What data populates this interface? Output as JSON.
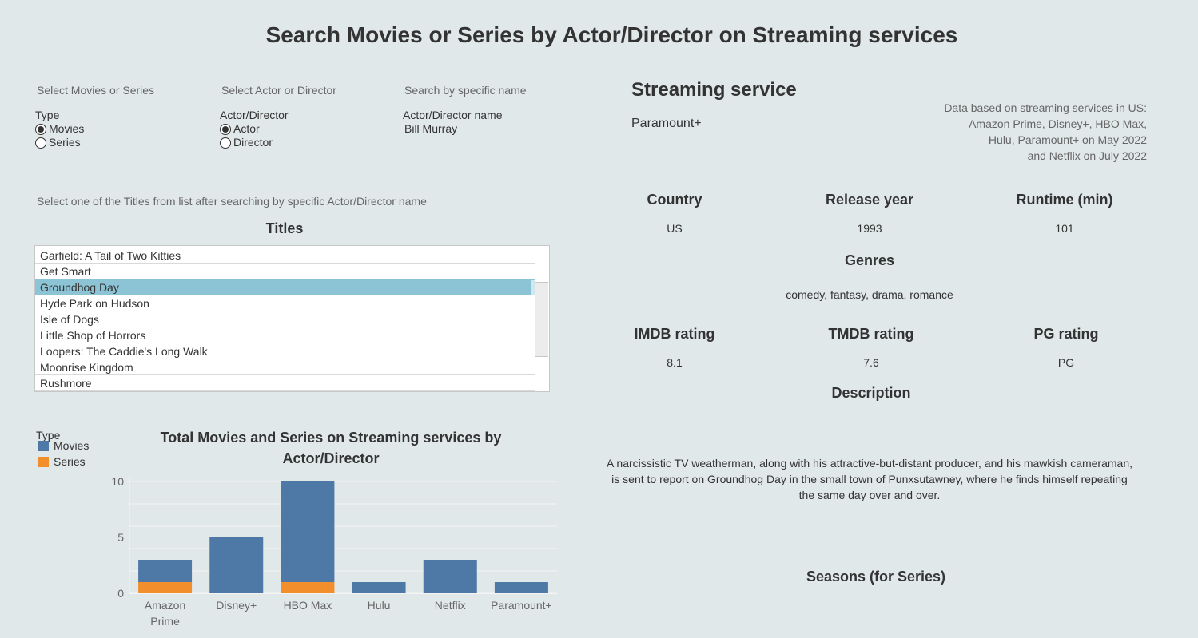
{
  "page": {
    "title": "Search Movies or Series by Actor/Director on Streaming services"
  },
  "filters": {
    "type_section_label": "Select Movies or Series",
    "type_header": "Type",
    "type_options": [
      "Movies",
      "Series"
    ],
    "type_selected": "Movies",
    "role_section_label": "Select Actor or Director",
    "role_header": "Actor/Director",
    "role_options": [
      "Actor",
      "Director"
    ],
    "role_selected": "Actor",
    "name_section_label": "Search by specific name",
    "name_header": "Actor/Director name",
    "name_value": "Bill Murray"
  },
  "titles": {
    "instruction": "Select one of the Titles from list after searching by specific Actor/Director name",
    "heading": "Titles",
    "items": [
      "Garfield: A Tail of Two Kitties",
      "Get Smart",
      "Groundhog Day",
      "Hyde Park on Hudson",
      "Isle of Dogs",
      "Little Shop of Horrors",
      "Loopers: The Caddie's Long Walk",
      "Moonrise Kingdom",
      "Rushmore"
    ],
    "selected": "Groundhog Day"
  },
  "details": {
    "service_heading": "Streaming service",
    "service_value": "Paramount+",
    "note_lines": [
      "Data based on streaming services in US:",
      "Amazon Prime, Disney+, HBO Max,",
      "Hulu, Paramount+ on May 2022",
      "and Netflix on July 2022"
    ],
    "country_label": "Country",
    "country_value": "US",
    "year_label": "Release year",
    "year_value": "1993",
    "runtime_label": "Runtime (min)",
    "runtime_value": "101",
    "genres_label": "Genres",
    "genres_value": "comedy, fantasy, drama, romance",
    "imdb_label": "IMDB rating",
    "imdb_value": "8.1",
    "tmdb_label": "TMDB rating",
    "tmdb_value": "7.6",
    "pg_label": "PG rating",
    "pg_value": "PG",
    "description_label": "Description",
    "description_lines": [
      "A narcissistic TV weatherman, along with his attractive-but-distant producer, and his mawkish cameraman,",
      "is sent to report on Groundhog Day in the small town of Punxsutawney, where he finds himself repeating",
      "the same day over and over."
    ],
    "seasons_label": "Seasons (for Series)"
  },
  "colors": {
    "movies": "#4e79a7",
    "series": "#f28e2b",
    "selected_row": "#8cc3d5"
  },
  "chart_data": {
    "type": "bar",
    "stacked": true,
    "title_lines": [
      "Total Movies and Series on Streaming services by",
      "Actor/Director"
    ],
    "legend_title": "Type",
    "categories": [
      "Amazon Prime",
      "Disney+",
      "HBO Max",
      "Hulu",
      "Netflix",
      "Paramount+"
    ],
    "category_label_lines": [
      [
        "Amazon",
        "Prime"
      ],
      [
        "Disney+"
      ],
      [
        "HBO Max"
      ],
      [
        "Hulu"
      ],
      [
        "Netflix"
      ],
      [
        "Paramount+"
      ]
    ],
    "series": [
      {
        "name": "Series",
        "color": "#f28e2b",
        "values": [
          1,
          0,
          1,
          0,
          0,
          0
        ]
      },
      {
        "name": "Movies",
        "color": "#4e79a7",
        "values": [
          2,
          5,
          9,
          1,
          3,
          1
        ]
      }
    ],
    "legend_order": [
      "Movies",
      "Series"
    ],
    "yticks": [
      0,
      5,
      10
    ],
    "ylim": [
      0,
      10.5
    ],
    "grid": true,
    "legend_position": "top-left"
  }
}
